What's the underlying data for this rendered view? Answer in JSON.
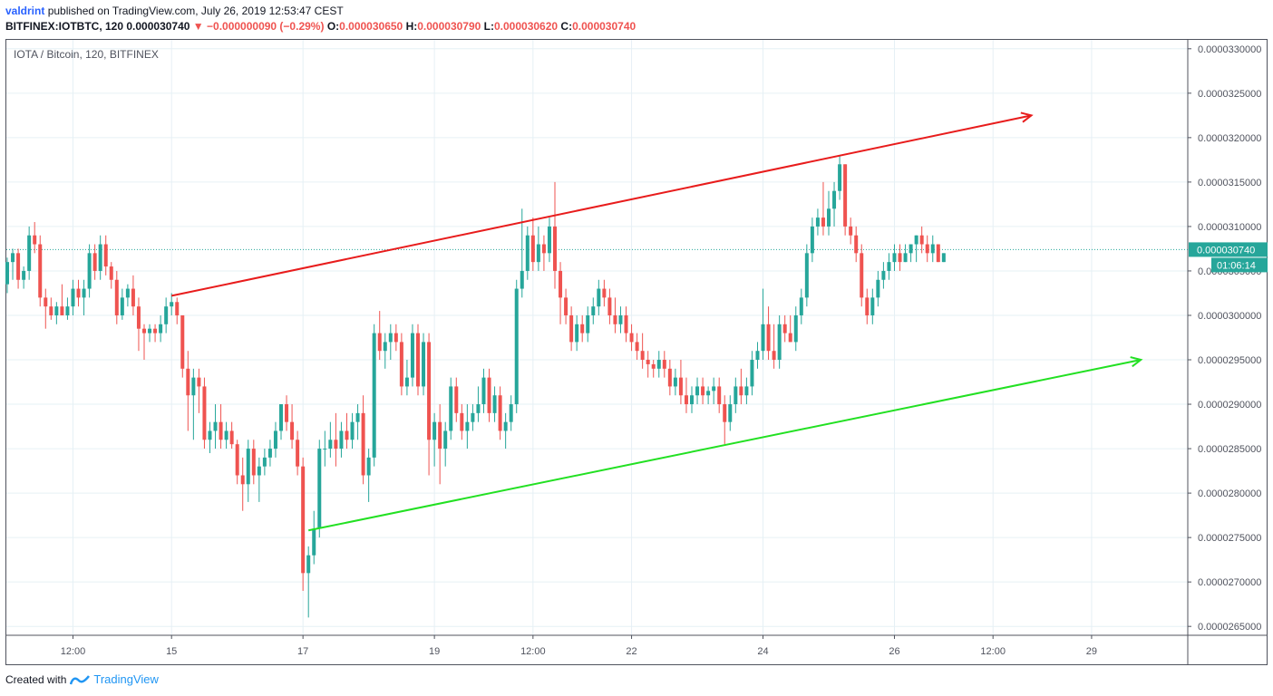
{
  "header": {
    "user": "valdrint",
    "published_text": "published on TradingView.com, July 26, 2019 12:53:47 CEST",
    "symbol": "BITFINEX:IOTBTC, 120",
    "last": "0.000030740",
    "down_arrow": "▼",
    "change": "−0.000000090 (−0.29%)",
    "open_label": "O:",
    "open": "0.000030650",
    "high_label": "H:",
    "high": "0.000030790",
    "low_label": "L:",
    "low": "0.000030620",
    "close_label": "C:",
    "close": "0.000030740"
  },
  "symbol_label": "IOTA / Bitcoin, 120, BITFINEX",
  "footer": {
    "created_with": "Created with",
    "brand": "TradingView"
  },
  "colors": {
    "up": "#26a69a",
    "down": "#ef5350",
    "grid": "#e6f0f5",
    "resistance": "#e81c1c",
    "support": "#22e022",
    "price_line": "#26a69a"
  },
  "chart_data": {
    "type": "candlestick",
    "title": "IOTA / Bitcoin, 120, BITFINEX",
    "ylim": [
      2.64e-05,
      3.31e-05
    ],
    "y_ticks": [
      "0.0000265000",
      "0.0000270000",
      "0.0000275000",
      "0.0000280000",
      "0.0000285000",
      "0.0000290000",
      "0.0000295000",
      "0.0000300000",
      "0.0000305000",
      "0.0000310000",
      "0.0000315000",
      "0.0000320000",
      "0.0000325000",
      "0.0000330000"
    ],
    "x_ticks": [
      "12:00",
      "15",
      "17",
      "19",
      "12:00",
      "22",
      "24",
      "26",
      "12:00",
      "29"
    ],
    "x_tick_candle_index": [
      12,
      30,
      54,
      78,
      96,
      114,
      138,
      162,
      180,
      198
    ],
    "last_price_label": "0.000030740",
    "countdown_label": "01:06:14",
    "last_price": 3.074e-05,
    "candles": [
      [
        3.035e-05,
        3.065e-05,
        3.025e-05,
        3.06e-05
      ],
      [
        3.06e-05,
        3.075e-05,
        3.04e-05,
        3.07e-05
      ],
      [
        3.07e-05,
        3.075e-05,
        3.03e-05,
        3.04e-05
      ],
      [
        3.04e-05,
        3.055e-05,
        3.03e-05,
        3.05e-05
      ],
      [
        3.05e-05,
        3.1e-05,
        3.04e-05,
        3.09e-05
      ],
      [
        3.09e-05,
        3.105e-05,
        3.07e-05,
        3.08e-05
      ],
      [
        3.08e-05,
        3.09e-05,
        3.01e-05,
        3.02e-05
      ],
      [
        3.02e-05,
        3.03e-05,
        2.985e-05,
        3.01e-05
      ],
      [
        3.01e-05,
        3.02e-05,
        2.995e-05,
        3e-05
      ],
      [
        3e-05,
        3.015e-05,
        2.99e-05,
        3.01e-05
      ],
      [
        3.01e-05,
        3.035e-05,
        3e-05,
        3e-05
      ],
      [
        3e-05,
        3.02e-05,
        2.995e-05,
        3.01e-05
      ],
      [
        3.01e-05,
        3.04e-05,
        3e-05,
        3.03e-05
      ],
      [
        3.03e-05,
        3.04e-05,
        3.01e-05,
        3.02e-05
      ],
      [
        3.02e-05,
        3.04e-05,
        3e-05,
        3.03e-05
      ],
      [
        3.03e-05,
        3.08e-05,
        3.02e-05,
        3.07e-05
      ],
      [
        3.07e-05,
        3.08e-05,
        3.04e-05,
        3.05e-05
      ],
      [
        3.05e-05,
        3.09e-05,
        3.04e-05,
        3.08e-05
      ],
      [
        3.08e-05,
        3.09e-05,
        3.045e-05,
        3.055e-05
      ],
      [
        3.055e-05,
        3.06e-05,
        3.03e-05,
        3.04e-05
      ],
      [
        3.04e-05,
        3.05e-05,
        2.99e-05,
        3e-05
      ],
      [
        3e-05,
        3.03e-05,
        2.995e-05,
        3.02e-05
      ],
      [
        3.02e-05,
        3.035e-05,
        3.01e-05,
        3.03e-05
      ],
      [
        3.03e-05,
        3.045e-05,
        3e-05,
        3.01e-05
      ],
      [
        3.01e-05,
        3.02e-05,
        2.96e-05,
        2.985e-05
      ],
      [
        2.985e-05,
        2.99e-05,
        2.95e-05,
        2.98e-05
      ],
      [
        2.98e-05,
        2.99e-05,
        2.97e-05,
        2.985e-05
      ],
      [
        2.985e-05,
        2.99e-05,
        2.97e-05,
        2.98e-05
      ],
      [
        2.98e-05,
        3e-05,
        2.97e-05,
        2.99e-05
      ],
      [
        2.99e-05,
        3.02e-05,
        2.98e-05,
        3.01e-05
      ],
      [
        3.01e-05,
        3.025e-05,
        3e-05,
        3.015e-05
      ],
      [
        3.015e-05,
        3.02e-05,
        2.99e-05,
        3e-05
      ],
      [
        3e-05,
        3e-05,
        2.93e-05,
        2.94e-05
      ],
      [
        2.94e-05,
        2.96e-05,
        2.87e-05,
        2.91e-05
      ],
      [
        2.91e-05,
        2.94e-05,
        2.86e-05,
        2.93e-05
      ],
      [
        2.93e-05,
        2.94e-05,
        2.89e-05,
        2.92e-05
      ],
      [
        2.92e-05,
        2.93e-05,
        2.85e-05,
        2.86e-05
      ],
      [
        2.86e-05,
        2.88e-05,
        2.845e-05,
        2.87e-05
      ],
      [
        2.87e-05,
        2.9e-05,
        2.85e-05,
        2.88e-05
      ],
      [
        2.88e-05,
        2.9e-05,
        2.85e-05,
        2.86e-05
      ],
      [
        2.86e-05,
        2.88e-05,
        2.85e-05,
        2.87e-05
      ],
      [
        2.87e-05,
        2.88e-05,
        2.85e-05,
        2.855e-05
      ],
      [
        2.855e-05,
        2.86e-05,
        2.81e-05,
        2.82e-05
      ],
      [
        2.82e-05,
        2.84e-05,
        2.78e-05,
        2.81e-05
      ],
      [
        2.81e-05,
        2.86e-05,
        2.79e-05,
        2.85e-05
      ],
      [
        2.85e-05,
        2.86e-05,
        2.81e-05,
        2.82e-05
      ],
      [
        2.82e-05,
        2.84e-05,
        2.79e-05,
        2.83e-05
      ],
      [
        2.83e-05,
        2.85e-05,
        2.82e-05,
        2.84e-05
      ],
      [
        2.84e-05,
        2.86e-05,
        2.83e-05,
        2.85e-05
      ],
      [
        2.85e-05,
        2.88e-05,
        2.84e-05,
        2.87e-05
      ],
      [
        2.87e-05,
        2.9e-05,
        2.86e-05,
        2.9e-05
      ],
      [
        2.9e-05,
        2.91e-05,
        2.87e-05,
        2.88e-05
      ],
      [
        2.88e-05,
        2.9e-05,
        2.85e-05,
        2.86e-05
      ],
      [
        2.86e-05,
        2.87e-05,
        2.82e-05,
        2.83e-05
      ],
      [
        2.83e-05,
        2.84e-05,
        2.69e-05,
        2.71e-05
      ],
      [
        2.71e-05,
        2.74e-05,
        2.66e-05,
        2.73e-05
      ],
      [
        2.73e-05,
        2.78e-05,
        2.72e-05,
        2.76e-05
      ],
      [
        2.76e-05,
        2.86e-05,
        2.75e-05,
        2.85e-05
      ],
      [
        2.85e-05,
        2.87e-05,
        2.83e-05,
        2.85e-05
      ],
      [
        2.85e-05,
        2.88e-05,
        2.84e-05,
        2.86e-05
      ],
      [
        2.86e-05,
        2.89e-05,
        2.83e-05,
        2.85e-05
      ],
      [
        2.85e-05,
        2.88e-05,
        2.84e-05,
        2.87e-05
      ],
      [
        2.87e-05,
        2.89e-05,
        2.85e-05,
        2.86e-05
      ],
      [
        2.86e-05,
        2.89e-05,
        2.85e-05,
        2.88e-05
      ],
      [
        2.88e-05,
        2.9e-05,
        2.86e-05,
        2.89e-05
      ],
      [
        2.89e-05,
        2.91e-05,
        2.81e-05,
        2.82e-05
      ],
      [
        2.82e-05,
        2.85e-05,
        2.79e-05,
        2.84e-05
      ],
      [
        2.84e-05,
        2.99e-05,
        2.83e-05,
        2.98e-05
      ],
      [
        2.98e-05,
        3.005e-05,
        2.95e-05,
        2.96e-05
      ],
      [
        2.96e-05,
        2.98e-05,
        2.94e-05,
        2.97e-05
      ],
      [
        2.97e-05,
        2.99e-05,
        2.95e-05,
        2.98e-05
      ],
      [
        2.98e-05,
        2.99e-05,
        2.96e-05,
        2.97e-05
      ],
      [
        2.97e-05,
        2.98e-05,
        2.91e-05,
        2.92e-05
      ],
      [
        2.92e-05,
        2.95e-05,
        2.91e-05,
        2.93e-05
      ],
      [
        2.93e-05,
        2.99e-05,
        2.92e-05,
        2.98e-05
      ],
      [
        2.98e-05,
        2.99e-05,
        2.91e-05,
        2.92e-05
      ],
      [
        2.92e-05,
        2.98e-05,
        2.91e-05,
        2.97e-05
      ],
      [
        2.97e-05,
        2.98e-05,
        2.82e-05,
        2.86e-05
      ],
      [
        2.86e-05,
        2.89e-05,
        2.83e-05,
        2.88e-05
      ],
      [
        2.88e-05,
        2.9e-05,
        2.81e-05,
        2.85e-05
      ],
      [
        2.85e-05,
        2.88e-05,
        2.83e-05,
        2.87e-05
      ],
      [
        2.87e-05,
        2.93e-05,
        2.86e-05,
        2.92e-05
      ],
      [
        2.92e-05,
        2.93e-05,
        2.88e-05,
        2.89e-05
      ],
      [
        2.89e-05,
        2.9e-05,
        2.86e-05,
        2.87e-05
      ],
      [
        2.87e-05,
        2.9e-05,
        2.85e-05,
        2.88e-05
      ],
      [
        2.88e-05,
        2.9e-05,
        2.87e-05,
        2.89e-05
      ],
      [
        2.89e-05,
        2.92e-05,
        2.88e-05,
        2.9e-05
      ],
      [
        2.9e-05,
        2.94e-05,
        2.89e-05,
        2.93e-05
      ],
      [
        2.93e-05,
        2.94e-05,
        2.88e-05,
        2.89e-05
      ],
      [
        2.89e-05,
        2.92e-05,
        2.88e-05,
        2.91e-05
      ],
      [
        2.91e-05,
        2.92e-05,
        2.86e-05,
        2.87e-05
      ],
      [
        2.87e-05,
        2.89e-05,
        2.85e-05,
        2.88e-05
      ],
      [
        2.88e-05,
        2.91e-05,
        2.87e-05,
        2.9e-05
      ],
      [
        2.9e-05,
        3.04e-05,
        2.89e-05,
        3.03e-05
      ],
      [
        3.03e-05,
        3.12e-05,
        3.02e-05,
        3.05e-05
      ],
      [
        3.05e-05,
        3.1e-05,
        3.04e-05,
        3.09e-05
      ],
      [
        3.09e-05,
        3.11e-05,
        3.05e-05,
        3.06e-05
      ],
      [
        3.06e-05,
        3.1e-05,
        3.05e-05,
        3.08e-05
      ],
      [
        3.08e-05,
        3.09e-05,
        3.05e-05,
        3.07e-05
      ],
      [
        3.07e-05,
        3.11e-05,
        3.06e-05,
        3.1e-05
      ],
      [
        3.1e-05,
        3.15e-05,
        3.03e-05,
        3.05e-05
      ],
      [
        3.05e-05,
        3.06e-05,
        2.99e-05,
        3.02e-05
      ],
      [
        3.02e-05,
        3.03e-05,
        2.99e-05,
        3e-05
      ],
      [
        3e-05,
        3.01e-05,
        2.96e-05,
        2.97e-05
      ],
      [
        2.97e-05,
        3e-05,
        2.96e-05,
        2.99e-05
      ],
      [
        2.99e-05,
        3e-05,
        2.97e-05,
        2.98e-05
      ],
      [
        2.98e-05,
        3.01e-05,
        2.97e-05,
        3e-05
      ],
      [
        3e-05,
        3.02e-05,
        2.99e-05,
        3.01e-05
      ],
      [
        3.01e-05,
        3.04e-05,
        3e-05,
        3.03e-05
      ],
      [
        3.03e-05,
        3.04e-05,
        3.01e-05,
        3.02e-05
      ],
      [
        3.02e-05,
        3.03e-05,
        2.99e-05,
        3e-05
      ],
      [
        3e-05,
        3.02e-05,
        2.98e-05,
        2.99e-05
      ],
      [
        2.99e-05,
        3.01e-05,
        2.98e-05,
        3e-05
      ],
      [
        3e-05,
        3.01e-05,
        2.97e-05,
        2.98e-05
      ],
      [
        2.98e-05,
        2.99e-05,
        2.96e-05,
        2.97e-05
      ],
      [
        2.97e-05,
        2.98e-05,
        2.95e-05,
        2.96e-05
      ],
      [
        2.96e-05,
        2.98e-05,
        2.94e-05,
        2.95e-05
      ],
      [
        2.95e-05,
        2.96e-05,
        2.93e-05,
        2.945e-05
      ],
      [
        2.945e-05,
        2.95e-05,
        2.93e-05,
        2.94e-05
      ],
      [
        2.94e-05,
        2.96e-05,
        2.93e-05,
        2.95e-05
      ],
      [
        2.95e-05,
        2.96e-05,
        2.93e-05,
        2.94e-05
      ],
      [
        2.94e-05,
        2.95e-05,
        2.91e-05,
        2.92e-05
      ],
      [
        2.92e-05,
        2.94e-05,
        2.91e-05,
        2.93e-05
      ],
      [
        2.93e-05,
        2.95e-05,
        2.9e-05,
        2.91e-05
      ],
      [
        2.91e-05,
        2.93e-05,
        2.89e-05,
        2.9e-05
      ],
      [
        2.9e-05,
        2.92e-05,
        2.89e-05,
        2.91e-05
      ],
      [
        2.91e-05,
        2.93e-05,
        2.9e-05,
        2.92e-05
      ],
      [
        2.92e-05,
        2.93e-05,
        2.9e-05,
        2.91e-05
      ],
      [
        2.91e-05,
        2.92e-05,
        2.9e-05,
        2.915e-05
      ],
      [
        2.915e-05,
        2.93e-05,
        2.9e-05,
        2.92e-05
      ],
      [
        2.92e-05,
        2.93e-05,
        2.89e-05,
        2.9e-05
      ],
      [
        2.9e-05,
        2.91e-05,
        2.855e-05,
        2.88e-05
      ],
      [
        2.88e-05,
        2.91e-05,
        2.87e-05,
        2.9e-05
      ],
      [
        2.9e-05,
        2.93e-05,
        2.89e-05,
        2.92e-05
      ],
      [
        2.92e-05,
        2.94e-05,
        2.9e-05,
        2.91e-05
      ],
      [
        2.91e-05,
        2.93e-05,
        2.9e-05,
        2.92e-05
      ],
      [
        2.92e-05,
        2.96e-05,
        2.91e-05,
        2.95e-05
      ],
      [
        2.95e-05,
        2.97e-05,
        2.94e-05,
        2.96e-05
      ],
      [
        2.96e-05,
        3.03e-05,
        2.95e-05,
        2.99e-05
      ],
      [
        2.99e-05,
        3.01e-05,
        2.95e-05,
        2.96e-05
      ],
      [
        2.96e-05,
        2.99e-05,
        2.94e-05,
        2.95e-05
      ],
      [
        2.95e-05,
        3e-05,
        2.94e-05,
        2.99e-05
      ],
      [
        2.99e-05,
        3e-05,
        2.97e-05,
        2.98e-05
      ],
      [
        2.98e-05,
        3e-05,
        2.97e-05,
        2.97e-05
      ],
      [
        2.97e-05,
        3.01e-05,
        2.96e-05,
        3e-05
      ],
      [
        3e-05,
        3.03e-05,
        2.99e-05,
        3.02e-05
      ],
      [
        3.02e-05,
        3.08e-05,
        3.01e-05,
        3.07e-05
      ],
      [
        3.07e-05,
        3.11e-05,
        3.06e-05,
        3.1e-05
      ],
      [
        3.1e-05,
        3.12e-05,
        3.09e-05,
        3.11e-05
      ],
      [
        3.11e-05,
        3.15e-05,
        3.09e-05,
        3.1e-05
      ],
      [
        3.1e-05,
        3.14e-05,
        3.09e-05,
        3.12e-05
      ],
      [
        3.12e-05,
        3.15e-05,
        3.1e-05,
        3.14e-05
      ],
      [
        3.14e-05,
        3.18e-05,
        3.13e-05,
        3.17e-05
      ],
      [
        3.17e-05,
        3.17e-05,
        3.09e-05,
        3.1e-05
      ],
      [
        3.1e-05,
        3.11e-05,
        3.08e-05,
        3.09e-05
      ],
      [
        3.09e-05,
        3.1e-05,
        3.06e-05,
        3.07e-05
      ],
      [
        3.07e-05,
        3.08e-05,
        3.01e-05,
        3.02e-05
      ],
      [
        3.02e-05,
        3.03e-05,
        2.99e-05,
        3e-05
      ],
      [
        3e-05,
        3.03e-05,
        2.99e-05,
        3.02e-05
      ],
      [
        3.02e-05,
        3.05e-05,
        3.01e-05,
        3.04e-05
      ],
      [
        3.04e-05,
        3.06e-05,
        3.03e-05,
        3.05e-05
      ],
      [
        3.05e-05,
        3.07e-05,
        3.04e-05,
        3.06e-05
      ],
      [
        3.06e-05,
        3.08e-05,
        3.05e-05,
        3.07e-05
      ],
      [
        3.07e-05,
        3.08e-05,
        3.05e-05,
        3.06e-05
      ],
      [
        3.06e-05,
        3.08e-05,
        3.06e-05,
        3.07e-05
      ],
      [
        3.07e-05,
        3.08e-05,
        3.06e-05,
        3.08e-05
      ],
      [
        3.08e-05,
        3.09e-05,
        3.06e-05,
        3.09e-05
      ],
      [
        3.09e-05,
        3.1e-05,
        3.07e-05,
        3.08e-05
      ],
      [
        3.08e-05,
        3.09e-05,
        3.06e-05,
        3.07e-05
      ],
      [
        3.07e-05,
        3.09e-05,
        3.06e-05,
        3.08e-05
      ],
      [
        3.08e-05,
        3.08e-05,
        3.06e-05,
        3.06e-05
      ],
      [
        3.06e-05,
        3.07e-05,
        3.06e-05,
        3.07e-05
      ]
    ],
    "annotations": [
      {
        "name": "resistance-line",
        "color": "#e81c1c",
        "arrow": true,
        "from_candle": 30,
        "from_price": 3.022e-05,
        "to_candle": 187,
        "to_price": 3.225e-05
      },
      {
        "name": "support-line",
        "color": "#22e022",
        "arrow": true,
        "from_candle": 55,
        "from_price": 2.758e-05,
        "to_candle": 207,
        "to_price": 2.95e-05
      }
    ]
  }
}
